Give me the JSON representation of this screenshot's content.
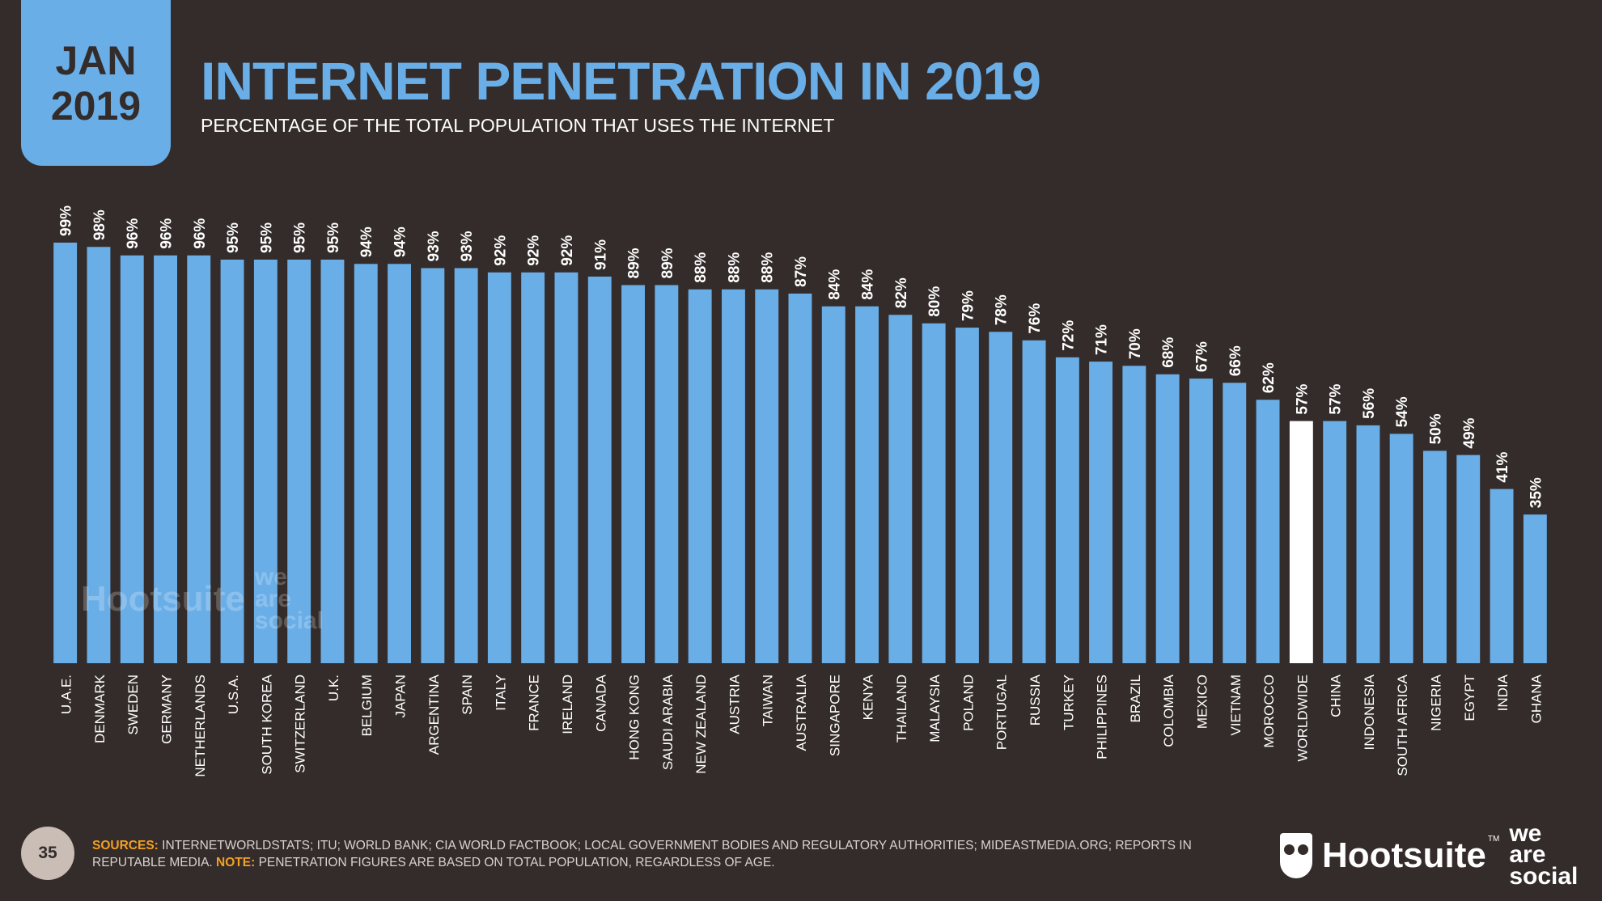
{
  "date_badge": {
    "month": "JAN",
    "year": "2019"
  },
  "header": {
    "title": "INTERNET PENETRATION IN 2019",
    "subtitle": "PERCENTAGE OF THE TOTAL POPULATION THAT USES THE INTERNET"
  },
  "colors": {
    "background": "#332c2a",
    "bar": "#6aaee8",
    "highlight_bar": "#ffffff",
    "accent": "#f4a024",
    "page_badge": "#c9bdb5"
  },
  "chart_data": {
    "type": "bar",
    "title": "INTERNET PENETRATION IN 2019",
    "categories": [
      "U.A.E.",
      "DENMARK",
      "SWEDEN",
      "GERMANY",
      "NETHERLANDS",
      "U.S.A.",
      "SOUTH KOREA",
      "SWITZERLAND",
      "U.K.",
      "BELGIUM",
      "JAPAN",
      "ARGENTINA",
      "SPAIN",
      "ITALY",
      "FRANCE",
      "IRELAND",
      "CANADA",
      "HONG KONG",
      "SAUDI ARABIA",
      "NEW ZEALAND",
      "AUSTRIA",
      "TAIWAN",
      "AUSTRALIA",
      "SINGAPORE",
      "KENYA",
      "THAILAND",
      "MALAYSIA",
      "POLAND",
      "PORTUGAL",
      "RUSSIA",
      "TURKEY",
      "PHILIPPINES",
      "BRAZIL",
      "COLOMBIA",
      "MEXICO",
      "VIETNAM",
      "MOROCCO",
      "WORLDWIDE",
      "CHINA",
      "INDONESIA",
      "SOUTH AFRICA",
      "NIGERIA",
      "EGYPT",
      "INDIA",
      "GHANA"
    ],
    "values": [
      99,
      98,
      96,
      96,
      96,
      95,
      95,
      95,
      95,
      94,
      94,
      93,
      93,
      92,
      92,
      92,
      91,
      89,
      89,
      88,
      88,
      88,
      87,
      84,
      84,
      82,
      80,
      79,
      78,
      76,
      72,
      71,
      70,
      68,
      67,
      66,
      62,
      57,
      57,
      56,
      54,
      50,
      49,
      41,
      35
    ],
    "value_labels": [
      "99%",
      "98%",
      "96%",
      "96%",
      "96%",
      "95%",
      "95%",
      "95%",
      "95%",
      "94%",
      "94%",
      "93%",
      "93%",
      "92%",
      "92%",
      "92%",
      "91%",
      "89%",
      "89%",
      "88%",
      "88%",
      "88%",
      "87%",
      "84%",
      "84%",
      "82%",
      "80%",
      "79%",
      "78%",
      "76%",
      "72%",
      "71%",
      "70%",
      "68%",
      "67%",
      "66%",
      "62%",
      "57%",
      "57%",
      "56%",
      "54%",
      "50%",
      "49%",
      "41%",
      "35%"
    ],
    "highlight_category": "WORLDWIDE",
    "ylim": [
      0,
      100
    ],
    "grid": false,
    "legend": "none"
  },
  "watermark": {
    "brand": "Hootsuite",
    "partner_lines": [
      "we",
      "are",
      "social"
    ]
  },
  "footer": {
    "page_number": "35",
    "sources_label": "SOURCES:",
    "sources_text": "INTERNETWORLDSTATS; ITU; WORLD BANK; CIA WORLD FACTBOOK; LOCAL GOVERNMENT BODIES AND REGULATORY AUTHORITIES; MIDEASTMEDIA.ORG; REPORTS IN REPUTABLE MEDIA.",
    "note_label": "NOTE:",
    "note_text": "PENETRATION FIGURES ARE BASED ON TOTAL POPULATION, REGARDLESS OF AGE."
  },
  "brand": {
    "name": "Hootsuite",
    "trademark": "TM",
    "partner_lines": [
      "we",
      "are",
      "social"
    ]
  }
}
